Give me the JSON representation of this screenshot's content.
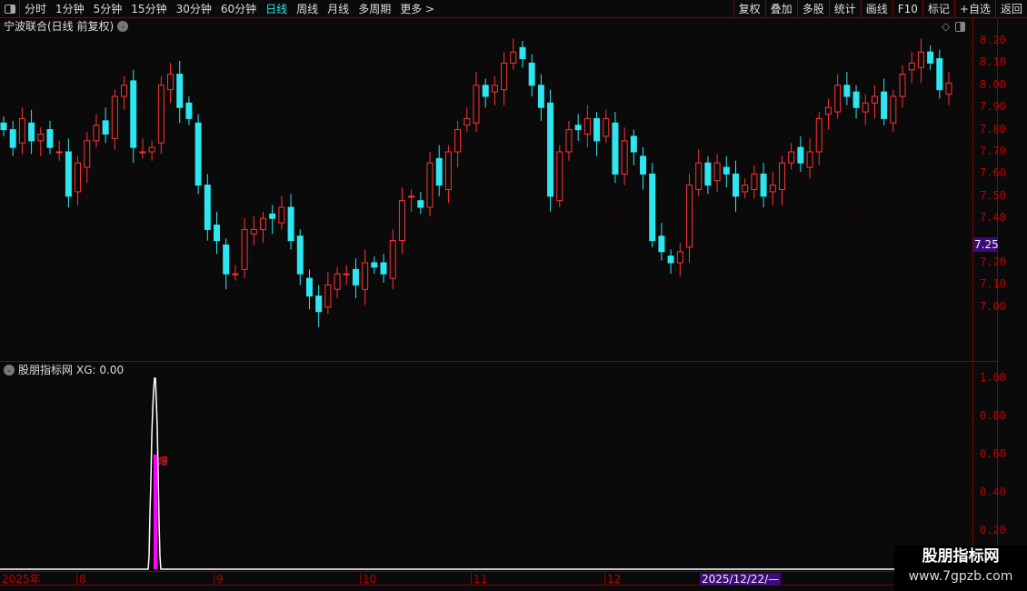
{
  "toolbar": {
    "periods": [
      "分时",
      "1分钟",
      "5分钟",
      "15分钟",
      "30分钟",
      "60分钟",
      "日线",
      "周线",
      "月线",
      "多周期",
      "更多 >"
    ],
    "active": "日线",
    "right_buttons": [
      "复权",
      "叠加",
      "多股",
      "统计",
      "画线",
      "F10",
      "标记",
      "+自选",
      "返回"
    ]
  },
  "header": {
    "title": "宁波联合(日线 前复权)"
  },
  "price_axis": {
    "ticks": [
      "8.20",
      "8.10",
      "8.00",
      "7.90",
      "7.80",
      "7.70",
      "7.60",
      "7.50",
      "7.40",
      "7.20",
      "7.10",
      "7.00"
    ],
    "current_price": "7.25"
  },
  "indicator": {
    "name": "股朋指标网",
    "value_label": "XG: 0.00",
    "ticks": [
      "1.00",
      "0.80",
      "0.60",
      "0.40",
      "0.20"
    ],
    "signal_label": "爆",
    "signal_value": 0.6,
    "spike_value": 1.0
  },
  "x_axis": {
    "labels": [
      "2025年",
      "8",
      "9",
      "10",
      "11",
      "12"
    ],
    "cursor_date": "2025/12/22/—"
  },
  "watermark": {
    "title": "股朋指标网",
    "url": "www.7gpzb.com"
  },
  "colors": {
    "up": "#ff3333",
    "down": "#2ee6f0",
    "grid": "#8b0000",
    "axis_text": "#c00000",
    "magenta": "#ff00ff",
    "highlight": "#3d0a7a"
  },
  "chart_data": {
    "type": "candlestick",
    "ylim": [
      6.85,
      8.25
    ],
    "closes": [
      7.8,
      7.72,
      7.85,
      7.75,
      7.78,
      7.72,
      7.7,
      7.5,
      7.65,
      7.75,
      7.82,
      7.78,
      7.95,
      8.0,
      7.72,
      7.7,
      7.72,
      8.0,
      8.05,
      7.9,
      7.85,
      7.55,
      7.35,
      7.3,
      7.15,
      7.15,
      7.35,
      7.35,
      7.4,
      7.4,
      7.45,
      7.3,
      7.15,
      7.05,
      6.98,
      7.1,
      7.15,
      7.15,
      7.1,
      7.2,
      7.18,
      7.15,
      7.3,
      7.48,
      7.5,
      7.45,
      7.65,
      7.55,
      7.7,
      7.8,
      7.85,
      8.0,
      7.95,
      8.0,
      8.1,
      8.15,
      8.12,
      8.0,
      7.9,
      7.5,
      7.7,
      7.8,
      7.8,
      7.85,
      7.75,
      7.85,
      7.6,
      7.75,
      7.7,
      7.6,
      7.3,
      7.25,
      7.2,
      7.25,
      7.55,
      7.65,
      7.55,
      7.65,
      7.6,
      7.5,
      7.55,
      7.6,
      7.5,
      7.55,
      7.65,
      7.7,
      7.65,
      7.7,
      7.85,
      7.9,
      8.0,
      7.95,
      7.9,
      7.92,
      7.95,
      7.85,
      7.95,
      8.05,
      8.1,
      8.15,
      8.1,
      7.98,
      8.01
    ]
  }
}
